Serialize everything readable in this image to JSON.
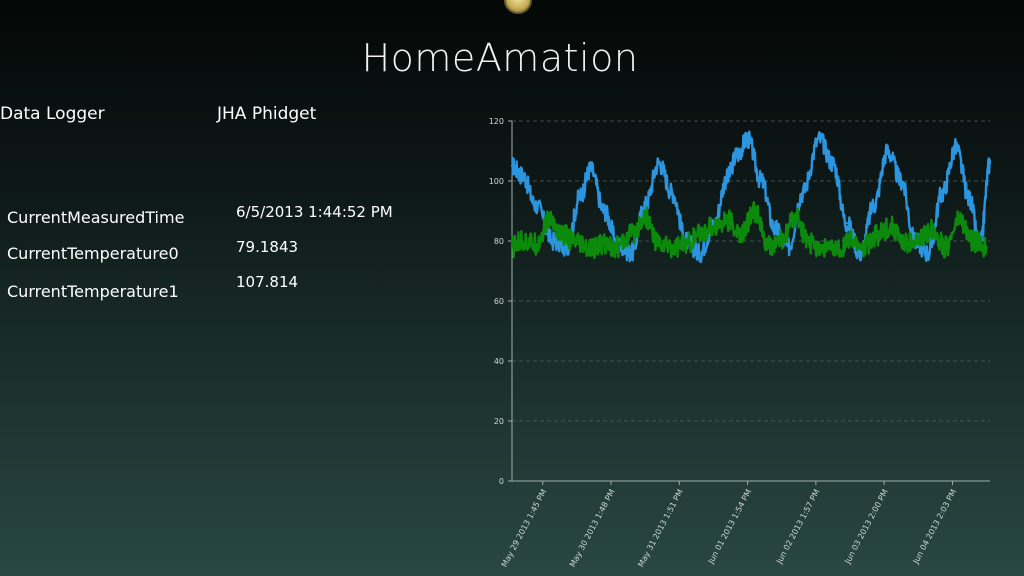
{
  "app": {
    "title": "HomeAmation"
  },
  "header": {
    "left_label": "Data Logger",
    "right_label": "JHA Phidget"
  },
  "readings": [
    {
      "label": "CurrentMeasuredTime",
      "value": "6/5/2013 1:44:52 PM"
    },
    {
      "label": "CurrentTemperature0",
      "value": "79.1843"
    },
    {
      "label": "CurrentTemperature1",
      "value": "107.814"
    }
  ],
  "chart_data": {
    "type": "line",
    "ylim": [
      0,
      120
    ],
    "yticks": [
      0,
      20,
      40,
      60,
      80,
      100,
      120
    ],
    "xlim": [
      0,
      7
    ],
    "xticks": [
      {
        "x": 0.45,
        "label": "May 29 2013 1:45 PM"
      },
      {
        "x": 1.45,
        "label": "May 30 2013 1:48 PM"
      },
      {
        "x": 2.45,
        "label": "May 31 2013 1:51 PM"
      },
      {
        "x": 3.45,
        "label": "Jun 01 2013 1:54 PM"
      },
      {
        "x": 4.45,
        "label": "Jun 02 2013 1:57 PM"
      },
      {
        "x": 5.45,
        "label": "Jun 03 2013 2:00 PM"
      },
      {
        "x": 6.45,
        "label": "Jun 04 2013 2:03 PM"
      }
    ],
    "grid": true,
    "series": [
      {
        "color": "#2b95e0",
        "x": [
          0.0,
          0.15,
          0.35,
          0.6,
          0.8,
          1.0,
          1.15,
          1.35,
          1.55,
          1.75,
          1.95,
          2.15,
          2.35,
          2.55,
          2.75,
          2.95,
          3.15,
          3.3,
          3.45,
          3.65,
          3.85,
          4.05,
          4.25,
          4.5,
          4.7,
          4.9,
          5.1,
          5.3,
          5.5,
          5.7,
          5.9,
          6.1,
          6.3,
          6.5,
          6.7,
          6.85,
          7.0
        ],
        "values": [
          105,
          102,
          92,
          80,
          78,
          95,
          104,
          90,
          79,
          76,
          92,
          106,
          96,
          80,
          76,
          85,
          101,
          109,
          114,
          100,
          84,
          78,
          96,
          114,
          106,
          86,
          76,
          92,
          110,
          100,
          80,
          76,
          96,
          111,
          94,
          78,
          106
        ]
      },
      {
        "color": "#0c8a0c",
        "x": [
          0.0,
          0.15,
          0.35,
          0.55,
          0.75,
          0.95,
          1.15,
          1.35,
          1.55,
          1.75,
          1.95,
          2.15,
          2.35,
          2.55,
          2.75,
          2.95,
          3.15,
          3.35,
          3.55,
          3.75,
          3.95,
          4.15,
          4.35,
          4.55,
          4.75,
          4.95,
          5.15,
          5.35,
          5.55,
          5.75,
          5.95,
          6.15,
          6.35,
          6.55,
          6.75,
          6.95
        ],
        "values": [
          78,
          80,
          79,
          87,
          82,
          79,
          77,
          79,
          78,
          82,
          88,
          79,
          78,
          79,
          82,
          85,
          87,
          82,
          90,
          78,
          80,
          88,
          79,
          78,
          77,
          80,
          78,
          82,
          85,
          79,
          80,
          84,
          78,
          87,
          80,
          78
        ]
      }
    ]
  }
}
